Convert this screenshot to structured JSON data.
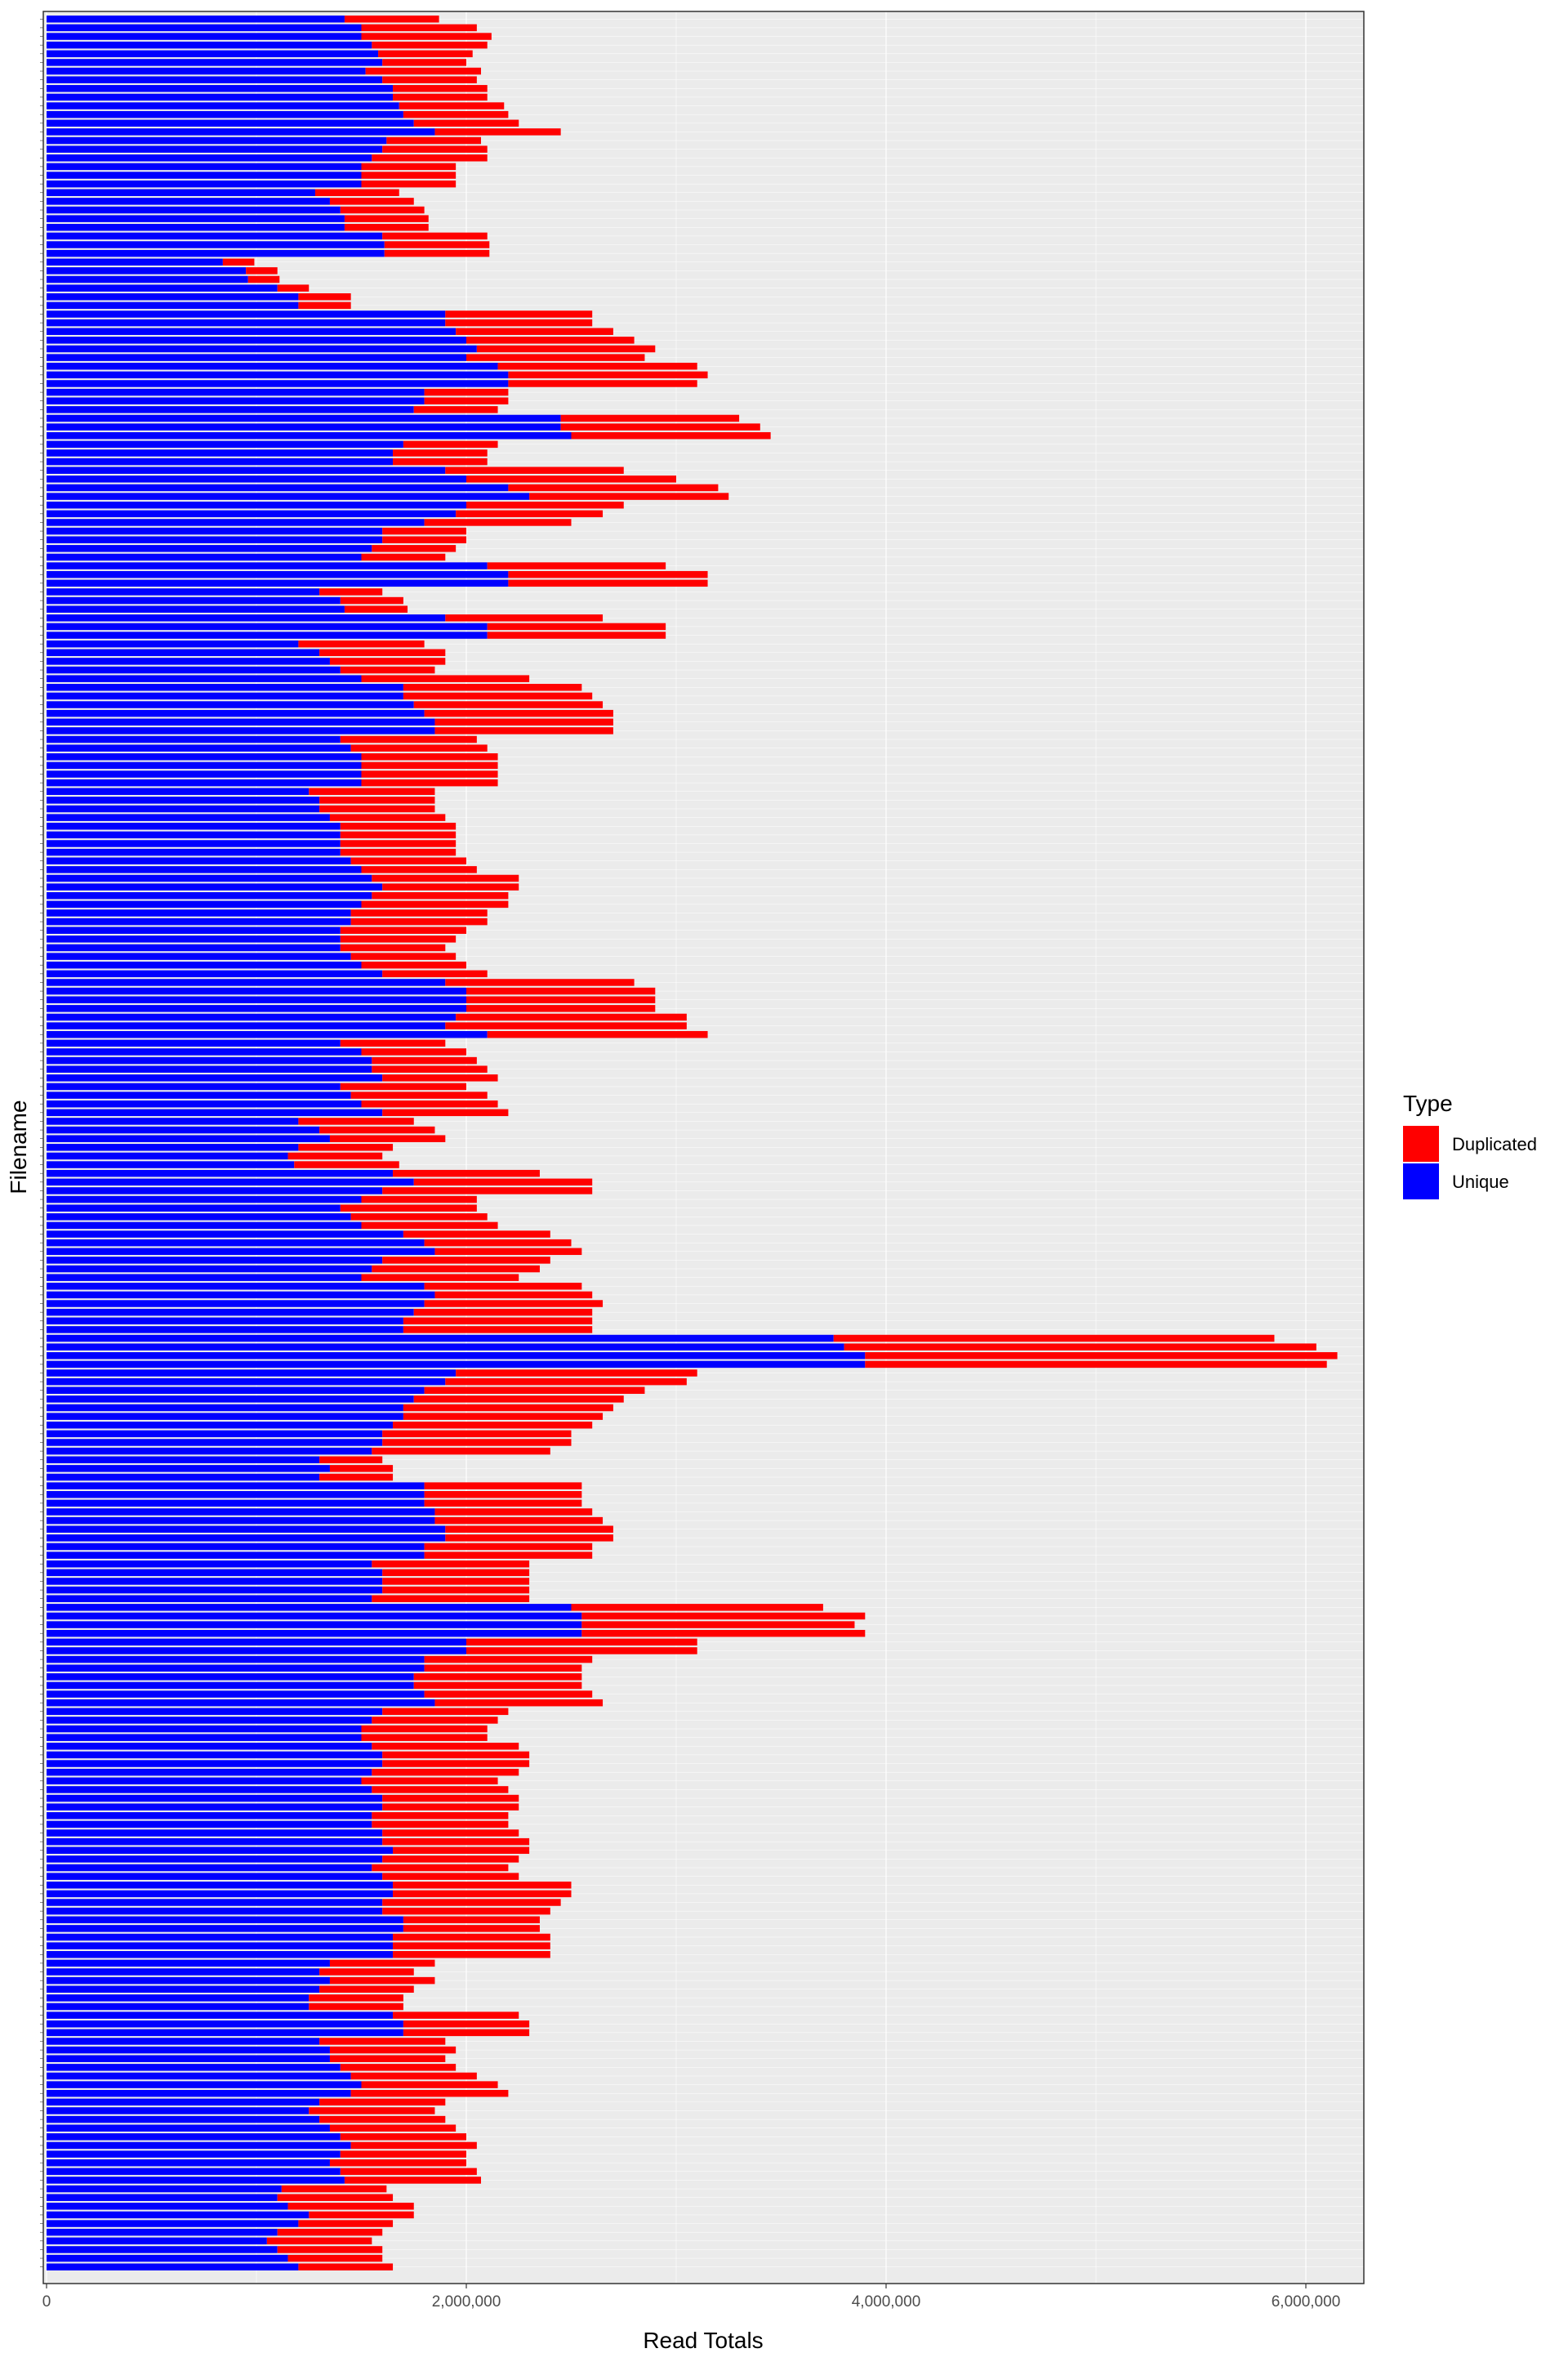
{
  "chart_data": {
    "type": "bar",
    "orientation": "horizontal",
    "stacked": true,
    "title": "",
    "xlabel": "Read Totals",
    "ylabel": "Filename",
    "xlim": [
      0,
      6300000
    ],
    "xticks": [
      0,
      2000000,
      4000000,
      6000000
    ],
    "xtick_labels": [
      "0",
      "2,000,000",
      "4,000,000",
      "6,000,000"
    ],
    "grid": true,
    "legend": {
      "title": "Type",
      "position": "right",
      "entries": [
        {
          "label": "Duplicated",
          "color": "#ff0000"
        },
        {
          "label": "Unique",
          "color": "#0000ff"
        }
      ]
    },
    "category_count": 260,
    "series": [
      {
        "name": "Unique",
        "color": "#0000ff",
        "values": [
          1420000,
          1500000,
          1500000,
          1550000,
          1580000,
          1600000,
          1520000,
          1600000,
          1650000,
          1650000,
          1680000,
          1700000,
          1750000,
          1850000,
          1620000,
          1600000,
          1550000,
          1500000,
          1500000,
          1500000,
          1280000,
          1350000,
          1400000,
          1420000,
          1420000,
          1600000,
          1610000,
          1610000,
          840000,
          950000,
          960000,
          1100000,
          1200000,
          1200000,
          1900000,
          1900000,
          1950000,
          2000000,
          2050000,
          2000000,
          2150000,
          2200000,
          2200000,
          1800000,
          1800000,
          1750000,
          2450000,
          2450000,
          2500000,
          1700000,
          1650000,
          1650000,
          1900000,
          2000000,
          2200000,
          2300000,
          2000000,
          1950000,
          1800000,
          1600000,
          1600000,
          1550000,
          1500000,
          2100000,
          2200000,
          2200000,
          1300000,
          1400000,
          1420000,
          1900000,
          2100000,
          2100000,
          1200000,
          1300000,
          1350000,
          1400000,
          1500000,
          1700000,
          1700000,
          1750000,
          1800000,
          1850000,
          1850000,
          1400000,
          1450000,
          1500000,
          1500000,
          1500000,
          1500000,
          1250000,
          1300000,
          1300000,
          1350000,
          1400000,
          1400000,
          1400000,
          1400000,
          1450000,
          1500000,
          1550000,
          1600000,
          1550000,
          1500000,
          1450000,
          1450000,
          1400000,
          1400000,
          1400000,
          1450000,
          1500000,
          1600000,
          1900000,
          2000000,
          2000000,
          2000000,
          1950000,
          1900000,
          2100000,
          1400000,
          1500000,
          1550000,
          1550000,
          1600000,
          1400000,
          1450000,
          1500000,
          1600000,
          1200000,
          1300000,
          1350000,
          1200000,
          1150000,
          1180000,
          1650000,
          1750000,
          1600000,
          1500000,
          1400000,
          1450000,
          1500000,
          1700000,
          1800000,
          1850000,
          1600000,
          1550000,
          1500000,
          1800000,
          1850000,
          1800000,
          1750000,
          1700000,
          1700000,
          3750000,
          3800000,
          3900000,
          3900000,
          1950000,
          1900000,
          1800000,
          1750000,
          1700000,
          1700000,
          1650000,
          1600000,
          1600000,
          1550000,
          1300000,
          1350000,
          1300000,
          1800000,
          1800000,
          1800000,
          1850000,
          1850000,
          1900000,
          1900000,
          1800000,
          1800000,
          1550000,
          1600000,
          1600000,
          1600000,
          1550000,
          2500000,
          2550000,
          2550000,
          2550000,
          2000000,
          2000000,
          1800000,
          1800000,
          1750000,
          1750000,
          1800000,
          1850000,
          1600000,
          1550000,
          1500000,
          1500000,
          1550000,
          1600000,
          1600000,
          1550000,
          1500000,
          1550000,
          1600000,
          1600000,
          1550000,
          1550000,
          1600000,
          1600000,
          1650000,
          1600000,
          1550000,
          1600000,
          1650000,
          1650000,
          1600000,
          1600000,
          1700000,
          1700000,
          1650000,
          1650000,
          1650000,
          1350000,
          1300000,
          1350000,
          1300000,
          1250000,
          1250000,
          1650000,
          1700000,
          1700000,
          1300000,
          1350000,
          1350000,
          1400000,
          1450000,
          1500000,
          1450000,
          1300000,
          1250000,
          1300000,
          1350000,
          1400000,
          1450000,
          1400000,
          1350000,
          1400000,
          1420000,
          1120000,
          1100000,
          1150000,
          1250000,
          1200000,
          1100000,
          1050000,
          1100000,
          1150000,
          1200000
        ]
      },
      {
        "name": "Duplicated",
        "color": "#ff0000",
        "values": [
          450000,
          550000,
          620000,
          550000,
          450000,
          400000,
          550000,
          450000,
          450000,
          450000,
          500000,
          500000,
          500000,
          600000,
          450000,
          500000,
          550000,
          450000,
          450000,
          450000,
          400000,
          400000,
          400000,
          400000,
          400000,
          500000,
          500000,
          500000,
          150000,
          150000,
          150000,
          150000,
          250000,
          250000,
          700000,
          700000,
          750000,
          800000,
          850000,
          850000,
          950000,
          950000,
          900000,
          400000,
          400000,
          400000,
          850000,
          950000,
          950000,
          450000,
          450000,
          450000,
          850000,
          1000000,
          1000000,
          950000,
          750000,
          700000,
          700000,
          400000,
          400000,
          400000,
          400000,
          850000,
          950000,
          950000,
          300000,
          300000,
          300000,
          750000,
          850000,
          850000,
          600000,
          600000,
          550000,
          450000,
          800000,
          850000,
          900000,
          900000,
          900000,
          850000,
          850000,
          650000,
          650000,
          650000,
          650000,
          650000,
          650000,
          600000,
          550000,
          550000,
          550000,
          550000,
          550000,
          550000,
          550000,
          550000,
          550000,
          700000,
          650000,
          650000,
          700000,
          650000,
          650000,
          600000,
          550000,
          500000,
          500000,
          500000,
          500000,
          900000,
          900000,
          900000,
          900000,
          1100000,
          1150000,
          1050000,
          500000,
          500000,
          500000,
          550000,
          550000,
          600000,
          650000,
          650000,
          600000,
          550000,
          550000,
          550000,
          450000,
          450000,
          500000,
          700000,
          850000,
          1000000,
          550000,
          650000,
          650000,
          650000,
          700000,
          700000,
          700000,
          800000,
          800000,
          750000,
          750000,
          750000,
          850000,
          850000,
          900000,
          900000,
          2100000,
          2250000,
          2250000,
          2200000,
          1150000,
          1150000,
          1050000,
          1000000,
          1000000,
          950000,
          950000,
          900000,
          900000,
          850000,
          300000,
          300000,
          350000,
          750000,
          750000,
          750000,
          750000,
          800000,
          800000,
          800000,
          800000,
          800000,
          750000,
          700000,
          700000,
          700000,
          750000,
          1200000,
          1350000,
          1300000,
          1350000,
          1100000,
          1100000,
          800000,
          750000,
          800000,
          800000,
          800000,
          800000,
          600000,
          600000,
          600000,
          600000,
          700000,
          700000,
          700000,
          700000,
          650000,
          650000,
          650000,
          650000,
          650000,
          650000,
          650000,
          700000,
          650000,
          650000,
          650000,
          650000,
          850000,
          850000,
          850000,
          800000,
          650000,
          650000,
          750000,
          750000,
          750000,
          500000,
          450000,
          500000,
          450000,
          450000,
          450000,
          600000,
          600000,
          600000,
          600000,
          600000,
          550000,
          550000,
          600000,
          650000,
          750000,
          600000,
          600000,
          600000,
          600000,
          600000,
          600000,
          600000,
          650000,
          650000,
          650000,
          500000,
          550000,
          600000,
          500000,
          450000,
          500000,
          500000,
          500000,
          450000,
          450000
        ]
      }
    ]
  }
}
